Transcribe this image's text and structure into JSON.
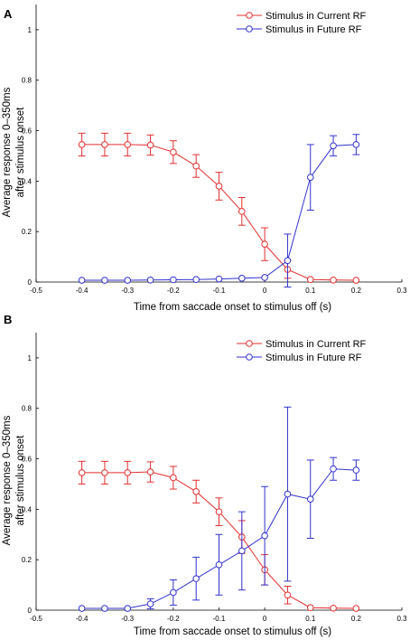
{
  "chart_data": [
    {
      "type": "line",
      "panel_label": "A",
      "xlabel": "Time from saccade onset to stimulus off (s)",
      "ylabel": "Average response 0–350ms after stimulus onset",
      "ylabel_lines": [
        "Average response 0–350ms",
        "after stimulus onset"
      ],
      "xlim": [
        -0.5,
        0.3
      ],
      "ylim": [
        0,
        1.1
      ],
      "xticks": [
        "-0.5",
        "-0.4",
        "-0.3",
        "-0.2",
        "-0.1",
        "0",
        "0.1",
        "0.2",
        "0.3"
      ],
      "yticks": [
        "0",
        "0.2",
        "0.4",
        "0.6",
        "0.8",
        "1"
      ],
      "grid": false,
      "legend_position": "top-right",
      "series": [
        {
          "name": "Stimulus in Current RF",
          "color": "#e32f2f",
          "x": [
            -0.4,
            -0.35,
            -0.3,
            -0.25,
            -0.2,
            -0.15,
            -0.1,
            -0.05,
            0,
            0.05,
            0.1,
            0.15,
            0.2
          ],
          "y": [
            0.545,
            0.545,
            0.545,
            0.543,
            0.515,
            0.46,
            0.38,
            0.28,
            0.15,
            0.05,
            0.01,
            0.008,
            0.007
          ],
          "err": [
            0.045,
            0.045,
            0.045,
            0.04,
            0.045,
            0.045,
            0.055,
            0.055,
            0.065,
            0.035,
            0,
            0,
            0
          ]
        },
        {
          "name": "Stimulus in Future RF",
          "color": "#3232cf",
          "x": [
            -0.4,
            -0.35,
            -0.3,
            -0.25,
            -0.2,
            -0.15,
            -0.1,
            -0.05,
            0,
            0.05,
            0.1,
            0.15,
            0.2
          ],
          "y": [
            0.007,
            0.007,
            0.007,
            0.008,
            0.009,
            0.01,
            0.012,
            0.015,
            0.018,
            0.085,
            0.415,
            0.54,
            0.545
          ],
          "err": [
            0,
            0,
            0,
            0,
            0,
            0,
            0,
            0,
            0,
            0.105,
            0.13,
            0.04,
            0.04
          ]
        }
      ]
    },
    {
      "type": "line",
      "panel_label": "B",
      "xlabel": "Time from saccade onset to stimulus off (s)",
      "ylabel": "Average response 0–350ms after stimulus onset",
      "ylabel_lines": [
        "Average response 0–350ms",
        "after stimulus onset"
      ],
      "xlim": [
        -0.5,
        0.3
      ],
      "ylim": [
        0,
        1.1
      ],
      "xticks": [
        "-0.5",
        "-0.4",
        "-0.3",
        "-0.2",
        "-0.1",
        "0",
        "0.1",
        "0.2",
        "0.3"
      ],
      "yticks": [
        "0",
        "0.2",
        "0.4",
        "0.6",
        "0.8",
        "1"
      ],
      "grid": false,
      "legend_position": "top-right",
      "series": [
        {
          "name": "Stimulus in Current RF",
          "color": "#e32f2f",
          "x": [
            -0.4,
            -0.35,
            -0.3,
            -0.25,
            -0.2,
            -0.15,
            -0.1,
            -0.05,
            0,
            0.05,
            0.1,
            0.15,
            0.2
          ],
          "y": [
            0.545,
            0.545,
            0.545,
            0.548,
            0.525,
            0.47,
            0.39,
            0.29,
            0.16,
            0.06,
            0.01,
            0.008,
            0.007
          ],
          "err": [
            0.045,
            0.045,
            0.045,
            0.04,
            0.045,
            0.045,
            0.055,
            0.065,
            0.06,
            0.035,
            0,
            0,
            0
          ]
        },
        {
          "name": "Stimulus in Future RF",
          "color": "#3232cf",
          "x": [
            -0.4,
            -0.35,
            -0.3,
            -0.25,
            -0.2,
            -0.15,
            -0.1,
            -0.05,
            0,
            0.05,
            0.1,
            0.15,
            0.2
          ],
          "y": [
            0.007,
            0.007,
            0.007,
            0.025,
            0.07,
            0.125,
            0.18,
            0.235,
            0.295,
            0.46,
            0.44,
            0.56,
            0.555
          ],
          "err": [
            0,
            0,
            0,
            0.02,
            0.05,
            0.085,
            0.12,
            0.155,
            0.195,
            0.345,
            0.155,
            0.045,
            0.04
          ]
        }
      ]
    }
  ]
}
